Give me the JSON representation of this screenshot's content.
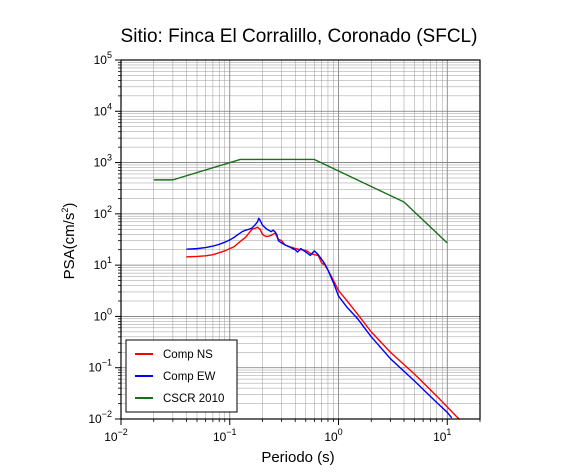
{
  "chart_data": {
    "type": "line",
    "title": "Sitio: Finca El Corralillo, Coronado (SFCL)",
    "xlabel": "Periodo (s)",
    "ylabel": {
      "base": "PSA(cm/s",
      "sup": "2",
      "tail": ")"
    },
    "xscale": "log",
    "yscale": "log",
    "xlim": [
      0.01,
      20
    ],
    "ylim": [
      0.01,
      100000
    ],
    "grid": true,
    "legend_position": "bottom-left",
    "x_ticks": [
      {
        "base": "10",
        "exp": "−2",
        "value": 0.01
      },
      {
        "base": "10",
        "exp": "−1",
        "value": 0.1
      },
      {
        "base": "10",
        "exp": "0",
        "value": 1
      },
      {
        "base": "10",
        "exp": "1",
        "value": 10
      }
    ],
    "y_ticks": [
      {
        "base": "10",
        "exp": "−2",
        "value": 0.01
      },
      {
        "base": "10",
        "exp": "−1",
        "value": 0.1
      },
      {
        "base": "10",
        "exp": "0",
        "value": 1
      },
      {
        "base": "10",
        "exp": "1",
        "value": 10
      },
      {
        "base": "10",
        "exp": "2",
        "value": 100
      },
      {
        "base": "10",
        "exp": "3",
        "value": 1000
      },
      {
        "base": "10",
        "exp": "4",
        "value": 10000
      },
      {
        "base": "10",
        "exp": "5",
        "value": 100000
      }
    ],
    "series": [
      {
        "name": "Comp NS",
        "color": "#ff0000",
        "points": [
          [
            0.04,
            14.5
          ],
          [
            0.05,
            14.8
          ],
          [
            0.06,
            15.2
          ],
          [
            0.07,
            16
          ],
          [
            0.08,
            17.5
          ],
          [
            0.09,
            19
          ],
          [
            0.1,
            21
          ],
          [
            0.11,
            23
          ],
          [
            0.12,
            27
          ],
          [
            0.13,
            31
          ],
          [
            0.14,
            35
          ],
          [
            0.15,
            42
          ],
          [
            0.16,
            50
          ],
          [
            0.17,
            52
          ],
          [
            0.18,
            55
          ],
          [
            0.19,
            50
          ],
          [
            0.2,
            40
          ],
          [
            0.21,
            37
          ],
          [
            0.22,
            36
          ],
          [
            0.24,
            38
          ],
          [
            0.26,
            42
          ],
          [
            0.27,
            37
          ],
          [
            0.28,
            32
          ],
          [
            0.3,
            30
          ],
          [
            0.32,
            25
          ],
          [
            0.35,
            23
          ],
          [
            0.38,
            22
          ],
          [
            0.4,
            21
          ],
          [
            0.45,
            20
          ],
          [
            0.5,
            19.5
          ],
          [
            0.55,
            17
          ],
          [
            0.6,
            16
          ],
          [
            0.65,
            15.5
          ],
          [
            0.7,
            11
          ],
          [
            0.75,
            10
          ],
          [
            0.8,
            8
          ],
          [
            0.9,
            5
          ],
          [
            1.0,
            3.2
          ],
          [
            1.2,
            2.0
          ],
          [
            1.5,
            1.1
          ],
          [
            2.0,
            0.5
          ],
          [
            3.0,
            0.2
          ],
          [
            5.0,
            0.075
          ],
          [
            8.0,
            0.028
          ],
          [
            12.0,
            0.0115
          ],
          [
            13.0,
            0.0098
          ]
        ]
      },
      {
        "name": "Comp EW",
        "color": "#0000ff",
        "points": [
          [
            0.04,
            20.5
          ],
          [
            0.05,
            21
          ],
          [
            0.06,
            22
          ],
          [
            0.07,
            23.5
          ],
          [
            0.08,
            25.5
          ],
          [
            0.09,
            28
          ],
          [
            0.1,
            31
          ],
          [
            0.11,
            35
          ],
          [
            0.12,
            40
          ],
          [
            0.13,
            45
          ],
          [
            0.14,
            48
          ],
          [
            0.15,
            50
          ],
          [
            0.16,
            53
          ],
          [
            0.17,
            60
          ],
          [
            0.18,
            70
          ],
          [
            0.185,
            82
          ],
          [
            0.19,
            75
          ],
          [
            0.2,
            60
          ],
          [
            0.22,
            50
          ],
          [
            0.24,
            45
          ],
          [
            0.25,
            48
          ],
          [
            0.26,
            45
          ],
          [
            0.27,
            40
          ],
          [
            0.28,
            30
          ],
          [
            0.3,
            27
          ],
          [
            0.32,
            25
          ],
          [
            0.35,
            23
          ],
          [
            0.38,
            21
          ],
          [
            0.4,
            20
          ],
          [
            0.42,
            18
          ],
          [
            0.45,
            21
          ],
          [
            0.5,
            18
          ],
          [
            0.55,
            15.5
          ],
          [
            0.6,
            19
          ],
          [
            0.65,
            16
          ],
          [
            0.7,
            13
          ],
          [
            0.75,
            10.5
          ],
          [
            0.8,
            8
          ],
          [
            0.9,
            4.5
          ],
          [
            1.0,
            2.5
          ],
          [
            1.2,
            1.5
          ],
          [
            1.5,
            0.9
          ],
          [
            2.0,
            0.4
          ],
          [
            3.0,
            0.15
          ],
          [
            5.0,
            0.055
          ],
          [
            8.0,
            0.021
          ],
          [
            10.0,
            0.0135
          ],
          [
            11.0,
            0.0105
          ]
        ]
      },
      {
        "name": "CSCR 2010",
        "color": "#1a6e1a",
        "points": [
          [
            0.02,
            460
          ],
          [
            0.03,
            460
          ],
          [
            0.125,
            1150
          ],
          [
            0.6,
            1150
          ],
          [
            4.0,
            170
          ],
          [
            10.0,
            27
          ]
        ]
      }
    ]
  }
}
